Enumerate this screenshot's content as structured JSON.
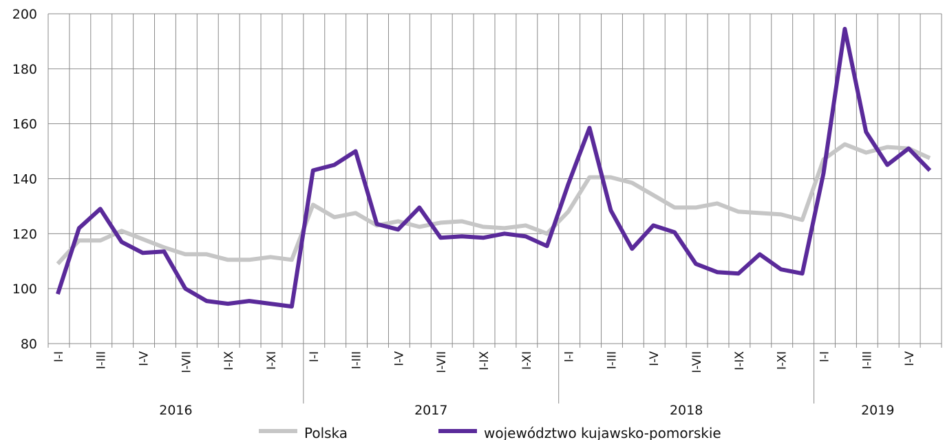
{
  "chart_data": {
    "type": "line",
    "ylim": [
      80,
      200
    ],
    "yticks": [
      80,
      100,
      120,
      140,
      160,
      180,
      200
    ],
    "grid": true,
    "legend_placement": "bottom",
    "month_labels": [
      "I-I",
      "",
      "I-III",
      "",
      "I-V",
      "",
      "I-VII",
      "",
      "I-IX",
      "",
      "I-XI",
      "",
      "I-I",
      "",
      "I-III",
      "",
      "I-V",
      "",
      "I-VII",
      "",
      "I-IX",
      "",
      "I-XI",
      "",
      "I-I",
      "",
      "I-III",
      "",
      "I-V",
      "",
      "I-VII",
      "",
      "I-IX",
      "",
      "I-XI",
      "",
      "I-I",
      "",
      "I-III",
      "",
      "I-V",
      ""
    ],
    "years": [
      "2016",
      "2017",
      "2018",
      "2019"
    ],
    "series": [
      {
        "name": "Polska",
        "color": "#c6c6c6",
        "values": [
          109,
          117.5,
          117.5,
          121,
          118,
          115,
          112.5,
          112.5,
          110.5,
          110.5,
          111.5,
          110.5,
          130.5,
          126,
          127.5,
          123,
          124.5,
          122.5,
          124,
          124.5,
          122.5,
          122,
          123,
          120,
          128,
          140.5,
          140.5,
          138.5,
          134,
          129.5,
          129.5,
          131,
          128,
          127.5,
          127,
          125,
          147,
          152.5,
          149.5,
          151.5,
          151,
          147.5
        ]
      },
      {
        "name": "województwo kujawsko-pomorskie",
        "color": "#5a2a9a",
        "values": [
          98,
          122,
          129,
          117,
          113,
          113.5,
          100,
          95.5,
          94.5,
          95.5,
          94.5,
          93.5,
          143,
          145,
          150,
          123.5,
          121.5,
          129.5,
          118.5,
          119,
          118.5,
          120,
          119,
          115.5,
          138,
          158.5,
          128.5,
          114.5,
          123,
          120.5,
          109,
          106,
          105.5,
          112.5,
          107,
          105.5,
          142,
          194.5,
          157,
          145,
          151,
          143
        ]
      }
    ]
  }
}
